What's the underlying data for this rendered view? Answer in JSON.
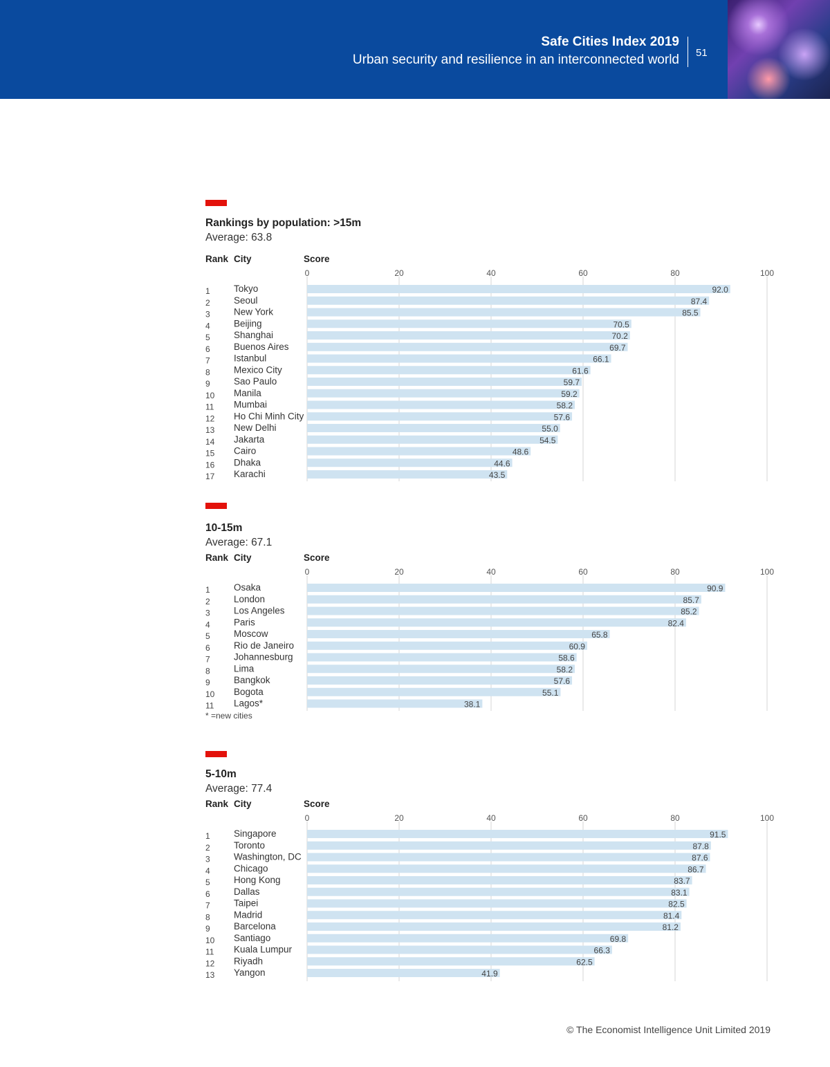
{
  "header": {
    "title": "Safe Cities Index 2019",
    "subtitle": "Urban security and resilience in an interconnected world",
    "page_number": "51"
  },
  "columns": {
    "rank": "Rank",
    "city": "City",
    "score": "Score"
  },
  "footnote": "* =new cities",
  "copyright": "© The Economist Intelligence Unit Limited 2019",
  "colors": {
    "header_bg": "#0a4a9e",
    "accent_red": "#e3120b",
    "bar": "#cfe3f1",
    "grid": "#d6d6d6"
  },
  "chart_data": [
    {
      "type": "bar",
      "orientation": "horizontal",
      "title": "Rankings by population: >15m",
      "average_label": "Average: 63.8",
      "xlim": [
        0,
        100
      ],
      "x_ticks": [
        0,
        20,
        40,
        60,
        80,
        100
      ],
      "grid": true,
      "ranks": [
        "1",
        "2",
        "3",
        "4",
        "5",
        "6",
        "7",
        "8",
        "9",
        "10",
        "11",
        "12",
        "13",
        "14",
        "15",
        "16",
        "17"
      ],
      "categories": [
        "Tokyo",
        "Seoul",
        "New York",
        "Beijing",
        "Shanghai",
        "Buenos Aires",
        "Istanbul",
        "Mexico City",
        "Sao Paulo",
        "Manila",
        "Mumbai",
        "Ho Chi Minh City",
        "New Delhi",
        "Jakarta",
        "Cairo",
        "Dhaka",
        "Karachi"
      ],
      "values": [
        92.0,
        87.4,
        85.5,
        70.5,
        70.2,
        69.7,
        66.1,
        61.6,
        59.7,
        59.2,
        58.2,
        57.6,
        55.0,
        54.5,
        48.6,
        44.6,
        43.5
      ],
      "value_labels": [
        "92.0",
        "87.4",
        "85.5",
        "70.5",
        "70.2",
        "69.7",
        "66.1",
        "61.6",
        "59.7",
        "59.2",
        "58.2",
        "57.6",
        "55.0",
        "54.5",
        "48.6",
        "44.6",
        "43.5"
      ]
    },
    {
      "type": "bar",
      "orientation": "horizontal",
      "title": "10-15m",
      "average_label": "Average: 67.1",
      "xlim": [
        0,
        100
      ],
      "x_ticks": [
        0,
        20,
        40,
        60,
        80,
        100
      ],
      "grid": true,
      "ranks": [
        "1",
        "2",
        "3",
        "4",
        "5",
        "6",
        "7",
        "8",
        "9",
        "10",
        "11"
      ],
      "categories": [
        "Osaka",
        "London",
        "Los Angeles",
        "Paris",
        "Moscow",
        "Rio de Janeiro",
        "Johannesburg",
        "Lima",
        "Bangkok",
        "Bogota",
        "Lagos*"
      ],
      "values": [
        90.9,
        85.7,
        85.2,
        82.4,
        65.8,
        60.9,
        58.6,
        58.2,
        57.6,
        55.1,
        38.1
      ],
      "value_labels": [
        "90.9",
        "85.7",
        "85.2",
        "82.4",
        "65.8",
        "60.9",
        "58.6",
        "58.2",
        "57.6",
        "55.1",
        "38.1"
      ]
    },
    {
      "type": "bar",
      "orientation": "horizontal",
      "title": "5-10m",
      "average_label": "Average: 77.4",
      "xlim": [
        0,
        100
      ],
      "x_ticks": [
        0,
        20,
        40,
        60,
        80,
        100
      ],
      "grid": true,
      "ranks": [
        "1",
        "2",
        "3",
        "4",
        "5",
        "6",
        "7",
        "8",
        "9",
        "10",
        "11",
        "12",
        "13"
      ],
      "categories": [
        "Singapore",
        "Toronto",
        "Washington, DC",
        "Chicago",
        "Hong Kong",
        "Dallas",
        "Taipei",
        "Madrid",
        "Barcelona",
        "Santiago",
        "Kuala Lumpur",
        "Riyadh",
        "Yangon"
      ],
      "values": [
        91.5,
        87.8,
        87.6,
        86.7,
        83.7,
        83.1,
        82.5,
        81.4,
        81.2,
        69.8,
        66.3,
        62.5,
        41.9
      ],
      "value_labels": [
        "91.5",
        "87.8",
        "87.6",
        "86.7",
        "83.7",
        "83.1",
        "82.5",
        "81.4",
        "81.2",
        "69.8",
        "66.3",
        "62.5",
        "41.9"
      ]
    }
  ]
}
